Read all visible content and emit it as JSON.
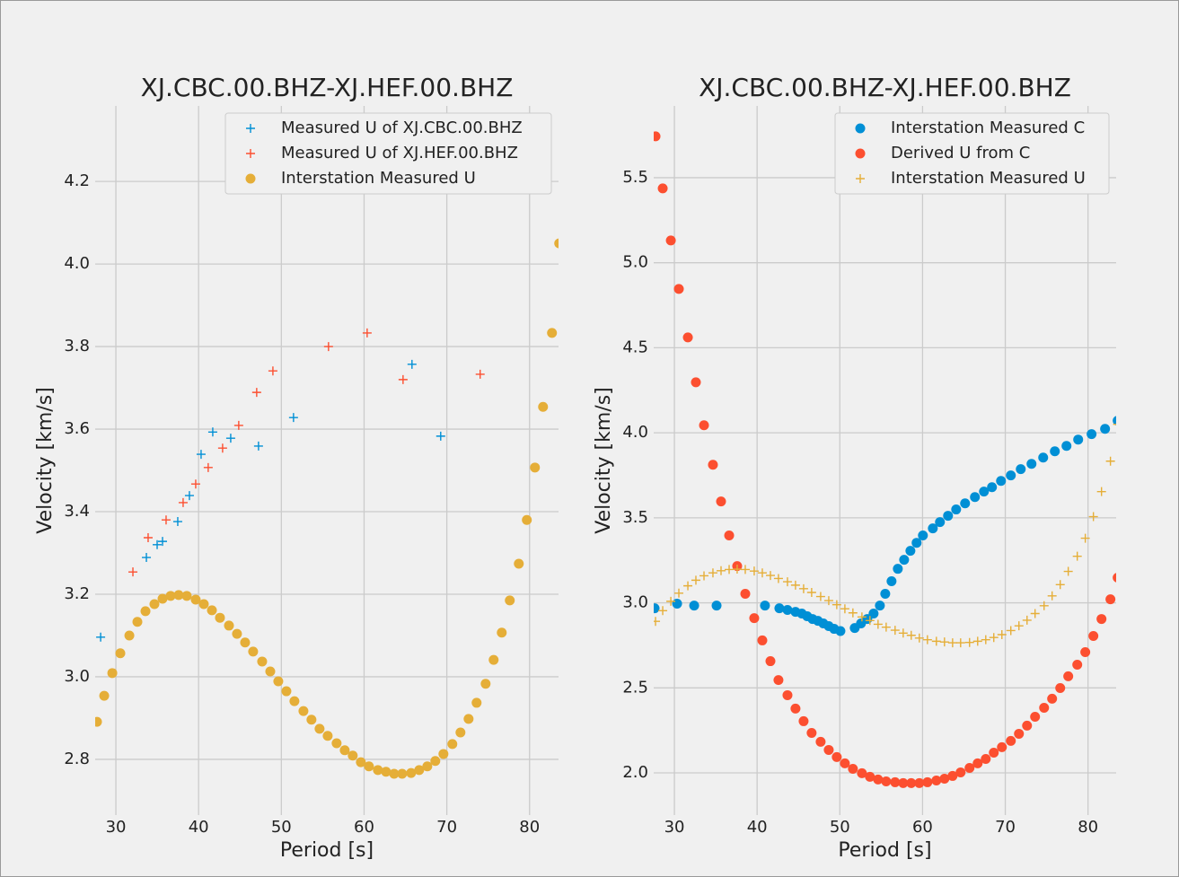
{
  "chart_data": [
    {
      "type": "scatter",
      "title": "XJ.CBC.00.BHZ-XJ.HEF.00.BHZ",
      "xlabel": "Period [s]",
      "ylabel": "Velocity [km/s]",
      "xlim": [
        27.5,
        83.5
      ],
      "ylim": [
        2.665,
        4.383
      ],
      "xticks": [
        30,
        40,
        50,
        60,
        70,
        80
      ],
      "yticks": [
        2.8,
        {
          "value": 3,
          "label": "3.0"
        },
        3.2,
        3.4,
        3.6,
        3.8,
        {
          "value": 4,
          "label": "4.0"
        },
        4.2
      ],
      "grid": true,
      "legend": "upper right",
      "series": [
        {
          "name": "Measured U of XJ.CBC.00.BHZ",
          "color": "#008fd5",
          "marker": "+",
          "x": [
            28.16,
            33.69,
            34.99,
            35.64,
            37.48,
            38.89,
            40.3,
            41.71,
            43.88,
            47.24,
            51.47,
            65.79,
            69.26
          ],
          "values": [
            3.096,
            3.289,
            3.32,
            3.328,
            3.376,
            3.439,
            3.539,
            3.593,
            3.578,
            3.559,
            3.628,
            3.757,
            3.583
          ]
        },
        {
          "name": "Measured U of XJ.HEF.00.BHZ",
          "color": "#fc4f30",
          "marker": "+",
          "x": [
            32.06,
            33.9,
            36.07,
            38.13,
            39.65,
            41.16,
            42.9,
            44.85,
            47.02,
            48.98,
            55.7,
            60.37,
            64.71,
            74.03
          ],
          "values": [
            3.254,
            3.337,
            3.38,
            3.422,
            3.467,
            3.507,
            3.554,
            3.609,
            3.689,
            3.741,
            3.8,
            3.833,
            3.72,
            3.733
          ]
        },
        {
          "name": "Interstation Measured U",
          "color": "#e5ae38",
          "marker": "o",
          "x": [
            27.72,
            28.59,
            29.57,
            30.54,
            31.63,
            32.6,
            33.58,
            34.66,
            35.64,
            36.62,
            37.59,
            38.57,
            39.65,
            40.63,
            41.61,
            42.58,
            43.67,
            44.64,
            45.62,
            46.59,
            47.68,
            48.66,
            49.63,
            50.61,
            51.58,
            52.67,
            53.64,
            54.62,
            55.6,
            56.68,
            57.66,
            58.63,
            59.61,
            60.59,
            61.67,
            62.65,
            63.63,
            64.6,
            65.68,
            66.66,
            67.64,
            68.61,
            69.59,
            70.67,
            71.65,
            72.63,
            73.6,
            74.69,
            75.66,
            76.64,
            77.61,
            78.7,
            79.67,
            80.65,
            81.63,
            82.71,
            83.58
          ],
          "values": [
            2.891,
            2.954,
            3.009,
            3.057,
            3.1,
            3.133,
            3.159,
            3.176,
            3.189,
            3.196,
            3.198,
            3.196,
            3.187,
            3.176,
            3.161,
            3.143,
            3.124,
            3.104,
            3.083,
            3.061,
            3.037,
            3.013,
            2.989,
            2.965,
            2.941,
            2.917,
            2.896,
            2.874,
            2.857,
            2.839,
            2.822,
            2.809,
            2.793,
            2.783,
            2.774,
            2.77,
            2.765,
            2.765,
            2.767,
            2.774,
            2.783,
            2.796,
            2.813,
            2.837,
            2.865,
            2.898,
            2.937,
            2.983,
            3.041,
            3.107,
            3.185,
            3.274,
            3.38,
            3.507,
            3.654,
            3.833,
            4.05
          ]
        }
      ]
    },
    {
      "type": "scatter",
      "title": "XJ.CBC.00.BHZ-XJ.HEF.00.BHZ",
      "xlabel": "Period [s]",
      "ylabel": "Velocity [km/s]",
      "xlim": [
        27.5,
        83.4
      ],
      "ylim": [
        1.752,
        5.922
      ],
      "xticks": [
        30,
        40,
        50,
        60,
        70,
        80
      ],
      "yticks": [
        {
          "value": 2,
          "label": "2.0"
        },
        2.5,
        {
          "value": 3,
          "label": "3.0"
        },
        3.5,
        {
          "value": 4,
          "label": "4.0"
        },
        4.5,
        {
          "value": 5,
          "label": "5.0"
        },
        5.5
      ],
      "grid": true,
      "legend": "upper right",
      "series": [
        {
          "name": "Interstation Measured C",
          "color": "#008fd5",
          "marker": "o",
          "x": [
            27.61,
            30.33,
            32.39,
            35.1,
            40.95,
            42.69,
            43.67,
            44.64,
            45.4,
            46.05,
            46.7,
            47.35,
            48.0,
            48.66,
            49.31,
            50.07,
            51.8,
            52.56,
            53.32,
            54.08,
            54.84,
            55.49,
            56.25,
            57.01,
            57.77,
            58.53,
            59.28,
            60.04,
            61.24,
            62.1,
            63.08,
            64.06,
            65.14,
            66.33,
            67.42,
            68.39,
            69.48,
            70.67,
            71.87,
            73.17,
            74.58,
            75.99,
            77.4,
            78.81,
            80.43,
            82.06,
            83.58
          ],
          "values": [
            2.968,
            2.995,
            2.984,
            2.984,
            2.984,
            2.968,
            2.958,
            2.947,
            2.937,
            2.921,
            2.905,
            2.894,
            2.879,
            2.863,
            2.847,
            2.834,
            2.852,
            2.879,
            2.905,
            2.937,
            2.984,
            3.053,
            3.127,
            3.2,
            3.253,
            3.306,
            3.353,
            3.396,
            3.438,
            3.475,
            3.512,
            3.549,
            3.585,
            3.622,
            3.654,
            3.68,
            3.717,
            3.749,
            3.786,
            3.817,
            3.854,
            3.891,
            3.923,
            3.96,
            3.992,
            4.023,
            4.071
          ]
        },
        {
          "name": "Derived U from C",
          "color": "#fc4f30",
          "marker": "o",
          "x": [
            27.72,
            28.59,
            29.57,
            30.54,
            31.63,
            32.6,
            33.58,
            34.66,
            35.64,
            36.62,
            37.59,
            38.57,
            39.65,
            40.63,
            41.61,
            42.58,
            43.67,
            44.64,
            45.62,
            46.59,
            47.68,
            48.66,
            49.63,
            50.61,
            51.58,
            52.67,
            53.64,
            54.62,
            55.6,
            56.68,
            57.66,
            58.63,
            59.61,
            60.59,
            61.67,
            62.65,
            63.63,
            64.6,
            65.68,
            66.66,
            67.64,
            68.61,
            69.59,
            70.67,
            71.65,
            72.63,
            73.6,
            74.69,
            75.66,
            76.64,
            77.61,
            78.7,
            79.67,
            80.65,
            81.63,
            82.71,
            83.58
          ],
          "values": [
            5.743,
            5.437,
            5.131,
            4.846,
            4.561,
            4.297,
            4.044,
            3.812,
            3.596,
            3.396,
            3.216,
            3.053,
            2.91,
            2.779,
            2.657,
            2.546,
            2.457,
            2.378,
            2.304,
            2.235,
            2.183,
            2.135,
            2.093,
            2.056,
            2.024,
            1.998,
            1.977,
            1.961,
            1.95,
            1.945,
            1.94,
            1.94,
            1.94,
            1.945,
            1.955,
            1.966,
            1.982,
            2.003,
            2.029,
            2.056,
            2.082,
            2.119,
            2.151,
            2.188,
            2.23,
            2.278,
            2.33,
            2.383,
            2.436,
            2.499,
            2.568,
            2.636,
            2.71,
            2.805,
            2.905,
            3.021,
            3.148
          ]
        },
        {
          "name": "Interstation Measured U",
          "color": "#e5ae38",
          "marker": "+",
          "x": [
            27.72,
            28.59,
            29.57,
            30.54,
            31.63,
            32.6,
            33.58,
            34.66,
            35.64,
            36.62,
            37.59,
            38.57,
            39.65,
            40.63,
            41.61,
            42.58,
            43.67,
            44.64,
            45.62,
            46.59,
            47.68,
            48.66,
            49.63,
            50.61,
            51.58,
            52.67,
            53.64,
            54.62,
            55.6,
            56.68,
            57.66,
            58.63,
            59.61,
            60.59,
            61.67,
            62.65,
            63.63,
            64.6,
            65.68,
            66.66,
            67.64,
            68.61,
            69.59,
            70.67,
            71.65,
            72.63,
            73.6,
            74.69,
            75.66,
            76.64,
            77.61,
            78.7,
            79.67,
            80.65,
            81.63,
            82.71,
            83.58
          ],
          "values": [
            2.891,
            2.954,
            3.009,
            3.057,
            3.1,
            3.133,
            3.159,
            3.176,
            3.189,
            3.196,
            3.198,
            3.196,
            3.187,
            3.176,
            3.161,
            3.143,
            3.124,
            3.104,
            3.083,
            3.061,
            3.037,
            3.013,
            2.989,
            2.965,
            2.941,
            2.917,
            2.896,
            2.874,
            2.857,
            2.839,
            2.822,
            2.809,
            2.793,
            2.783,
            2.774,
            2.77,
            2.765,
            2.765,
            2.767,
            2.774,
            2.783,
            2.796,
            2.813,
            2.837,
            2.865,
            2.898,
            2.937,
            2.983,
            3.041,
            3.107,
            3.185,
            3.274,
            3.38,
            3.507,
            3.654,
            3.833,
            4.05
          ]
        }
      ]
    }
  ]
}
